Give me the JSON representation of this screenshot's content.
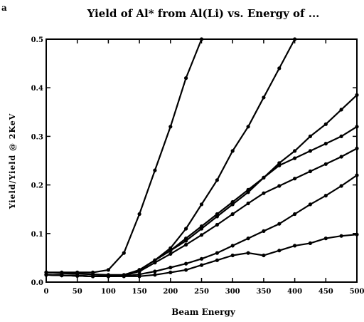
{
  "chart_data": {
    "type": "line",
    "corner_label": "a",
    "title": "Yield of Al* from Al(Li) vs. Energy of ...",
    "xlabel": "Beam Energy",
    "ylabel": "Yield/Yield @ 2KeV",
    "xlim": [
      0,
      500
    ],
    "ylim": [
      0,
      0.5
    ],
    "xticks": [
      0,
      50,
      100,
      150,
      200,
      250,
      300,
      350,
      400,
      450,
      500
    ],
    "yticks": [
      0,
      0.1,
      0.2,
      0.3,
      0.4,
      0.5
    ],
    "ytick_labels": [
      "0.0",
      "0.1",
      "0.2",
      "0.3",
      "0.4",
      "0.5"
    ],
    "grid": false,
    "series": [
      {
        "x": [
          0,
          25,
          50,
          75,
          100,
          125,
          150,
          175,
          200,
          225,
          250
        ],
        "y": [
          0.02,
          0.02,
          0.02,
          0.02,
          0.025,
          0.06,
          0.14,
          0.23,
          0.32,
          0.42,
          0.5
        ]
      },
      {
        "x": [
          0,
          25,
          50,
          75,
          100,
          125,
          150,
          175,
          200,
          225,
          250,
          275,
          300,
          325,
          350,
          375,
          400
        ],
        "y": [
          0.02,
          0.018,
          0.017,
          0.016,
          0.015,
          0.015,
          0.025,
          0.045,
          0.07,
          0.11,
          0.16,
          0.21,
          0.27,
          0.32,
          0.38,
          0.44,
          0.5
        ]
      },
      {
        "x": [
          0,
          25,
          50,
          75,
          100,
          125,
          150,
          175,
          200,
          225,
          250,
          275,
          300,
          325,
          350,
          375,
          400,
          425,
          450,
          475,
          500
        ],
        "y": [
          0.015,
          0.014,
          0.013,
          0.012,
          0.012,
          0.013,
          0.025,
          0.045,
          0.065,
          0.085,
          0.11,
          0.135,
          0.16,
          0.185,
          0.215,
          0.245,
          0.27,
          0.3,
          0.325,
          0.355,
          0.385
        ]
      },
      {
        "x": [
          0,
          25,
          50,
          75,
          100,
          125,
          150,
          175,
          200,
          225,
          250,
          275,
          300,
          325,
          350,
          375,
          400,
          425,
          450,
          475,
          500
        ],
        "y": [
          0.015,
          0.014,
          0.013,
          0.012,
          0.012,
          0.013,
          0.025,
          0.045,
          0.065,
          0.09,
          0.115,
          0.14,
          0.165,
          0.19,
          0.215,
          0.24,
          0.255,
          0.27,
          0.285,
          0.3,
          0.32
        ]
      },
      {
        "x": [
          0,
          25,
          50,
          75,
          100,
          125,
          150,
          175,
          200,
          225,
          250,
          275,
          300,
          325,
          350,
          375,
          400,
          425,
          450,
          475,
          500
        ],
        "y": [
          0.015,
          0.014,
          0.013,
          0.012,
          0.012,
          0.013,
          0.022,
          0.04,
          0.058,
          0.077,
          0.097,
          0.118,
          0.14,
          0.162,
          0.183,
          0.198,
          0.213,
          0.228,
          0.243,
          0.258,
          0.275
        ]
      },
      {
        "x": [
          0,
          25,
          50,
          75,
          100,
          125,
          150,
          175,
          200,
          225,
          250,
          275,
          300,
          325,
          350,
          375,
          400,
          425,
          450,
          475,
          500
        ],
        "y": [
          0.015,
          0.014,
          0.013,
          0.012,
          0.012,
          0.012,
          0.016,
          0.022,
          0.03,
          0.038,
          0.048,
          0.06,
          0.075,
          0.09,
          0.105,
          0.12,
          0.14,
          0.16,
          0.178,
          0.198,
          0.22
        ]
      },
      {
        "x": [
          0,
          25,
          50,
          75,
          100,
          125,
          150,
          175,
          200,
          225,
          250,
          275,
          300,
          325,
          350,
          375,
          400,
          425,
          450,
          475,
          500
        ],
        "y": [
          0.015,
          0.014,
          0.013,
          0.012,
          0.012,
          0.012,
          0.012,
          0.015,
          0.02,
          0.025,
          0.035,
          0.045,
          0.055,
          0.06,
          0.055,
          0.065,
          0.075,
          0.08,
          0.09,
          0.095,
          0.098
        ]
      }
    ]
  }
}
